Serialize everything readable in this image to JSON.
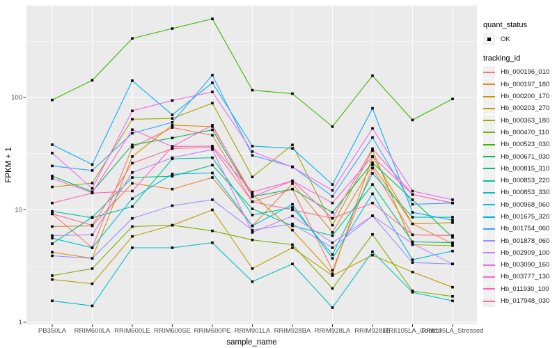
{
  "axes": {
    "y": {
      "title": "FPKM + 1",
      "tick_labels": [
        "1",
        "10",
        "100"
      ],
      "tick_values": [
        1,
        10,
        100
      ],
      "scale": "log10"
    },
    "x": {
      "title": "sample_name"
    }
  },
  "legend": {
    "quant_status": {
      "title": "quant_status",
      "items": [
        {
          "label": "OK",
          "marker": "black-point"
        }
      ]
    },
    "tracking_id": {
      "title": "tracking_id"
    }
  },
  "colors": {
    "panel_background": "#EBEBEB",
    "gridline": "#FFFFFF",
    "tick_text": "#4D4D4D",
    "axis_title": "#000000",
    "legend_key_bg": "#F1F1F1",
    "point": "#000000"
  },
  "chart_data": {
    "type": "line",
    "title": "",
    "xlabel": "sample_name",
    "ylabel": "FPKM + 1",
    "yscale": "log10",
    "ylim": [
      1,
      660
    ],
    "grid": true,
    "legend_position": "right",
    "marker": "black-square",
    "x_categories": [
      "PB350LA",
      "RRIM600LA",
      "RRIM600LE",
      "RRIM600SE",
      "RRIM600PE",
      "RRIM901LA",
      "RRIM928BA",
      "RRIM928LA",
      "RRIM928LE",
      "RRII105LA_Control",
      "RRII105LA_Stressed"
    ],
    "series": [
      {
        "name": "Hb_000196_010",
        "color": "#F8766D",
        "values": [
          9.2,
          4.6,
          36,
          54,
          46,
          11.8,
          15.3,
          2.9,
          23.5,
          6.0,
          5.9
        ]
      },
      {
        "name": "Hb_000197_180",
        "color": "#EA8331",
        "values": [
          7.1,
          7.2,
          17.2,
          15.3,
          19.4,
          7.2,
          17.1,
          6.3,
          25.1,
          7.5,
          5.0
        ]
      },
      {
        "name": "Hb_000200_170",
        "color": "#D89000",
        "values": [
          4.2,
          3.7,
          29.8,
          56.6,
          55,
          13.7,
          6.6,
          2.7,
          29.8,
          7.5,
          7.7
        ]
      },
      {
        "name": "Hb_000203_270",
        "color": "#C09B00",
        "values": [
          2.4,
          2.2,
          5.8,
          7.3,
          10.0,
          3.0,
          4.6,
          2.6,
          3.95,
          2.8,
          2.05
        ]
      },
      {
        "name": "Hb_000363_180",
        "color": "#A3A500",
        "values": [
          16,
          17.3,
          64,
          65,
          89,
          19.6,
          37.8,
          7.3,
          33.7,
          4.9,
          4.8
        ]
      },
      {
        "name": "Hb_000470_110",
        "color": "#7CAE00",
        "values": [
          2.6,
          3.0,
          7.1,
          7.3,
          6.5,
          5.4,
          4.9,
          2.0,
          6.05,
          1.9,
          1.7
        ]
      },
      {
        "name": "Hb_000523_030",
        "color": "#39B600",
        "values": [
          95,
          142,
          335,
          410,
          500,
          116,
          108,
          55,
          156,
          63,
          97
        ]
      },
      {
        "name": "Hb_000671_030",
        "color": "#00BB4E",
        "values": [
          20,
          14.5,
          37.8,
          43.6,
          51.5,
          13.1,
          15.3,
          9.5,
          26.3,
          12.3,
          5.7
        ]
      },
      {
        "name": "Hb_000815_310",
        "color": "#00BF7D",
        "values": [
          5.0,
          8.6,
          19.4,
          19.9,
          25.0,
          10.2,
          7.2,
          5.9,
          16.8,
          5.2,
          5.1
        ]
      },
      {
        "name": "Hb_000853_220",
        "color": "#00C1A3",
        "values": [
          9.7,
          8.5,
          10.7,
          28.4,
          29.1,
          9.0,
          10.5,
          4.0,
          21.1,
          8.6,
          8.6
        ]
      },
      {
        "name": "Hb_000853_330",
        "color": "#00BFC4",
        "values": [
          1.55,
          1.4,
          4.6,
          4.6,
          5.1,
          2.3,
          3.3,
          1.35,
          4.24,
          1.85,
          1.55
        ]
      },
      {
        "name": "Hb_000968_060",
        "color": "#00BAE0",
        "values": [
          5.6,
          4.6,
          12.6,
          20.8,
          21.3,
          7.2,
          11.2,
          3.7,
          13.9,
          3.6,
          4.3
        ]
      },
      {
        "name": "Hb_001675_320",
        "color": "#00B0F6",
        "values": [
          38,
          25.3,
          141,
          70,
          135,
          36.9,
          35.2,
          16.8,
          80,
          9.5,
          8.1
        ]
      },
      {
        "name": "Hb_001754_060",
        "color": "#35A2FF",
        "values": [
          24.6,
          22.4,
          48,
          60,
          158,
          30.5,
          24.2,
          13.2,
          44,
          11.2,
          11.5
        ]
      },
      {
        "name": "Hb_001878_060",
        "color": "#9590FF",
        "values": [
          3.9,
          3.7,
          8.4,
          10.9,
          12.3,
          6.6,
          7.5,
          4.6,
          8.85,
          3.4,
          3.3
        ]
      },
      {
        "name": "Hb_002909_100",
        "color": "#C77CFF",
        "values": [
          5.9,
          6.0,
          21.5,
          29.1,
          34.4,
          6.3,
          8.8,
          5.1,
          8.85,
          5.0,
          3.3
        ]
      },
      {
        "name": "Hb_003090_160",
        "color": "#E76BF3",
        "values": [
          32,
          15.5,
          76,
          94,
          112,
          33,
          24,
          14.9,
          53,
          14.7,
          12.3
        ]
      },
      {
        "name": "Hb_003777_130",
        "color": "#FA62DB",
        "values": [
          19,
          14.2,
          51.7,
          36.6,
          56.6,
          13.1,
          18.1,
          11.5,
          29.8,
          13.7,
          11.5
        ]
      },
      {
        "name": "Hb_011930_100",
        "color": "#FF62BC",
        "values": [
          11.5,
          14.1,
          14.7,
          36.6,
          36.9,
          14.4,
          18.1,
          8.4,
          35,
          13.7,
          11.5
        ]
      },
      {
        "name": "Hb_017948_030",
        "color": "#FF6A98",
        "values": [
          9.2,
          7.3,
          26,
          35,
          36,
          11.8,
          10,
          8.4,
          11.5,
          6.0,
          5.9
        ]
      }
    ]
  }
}
